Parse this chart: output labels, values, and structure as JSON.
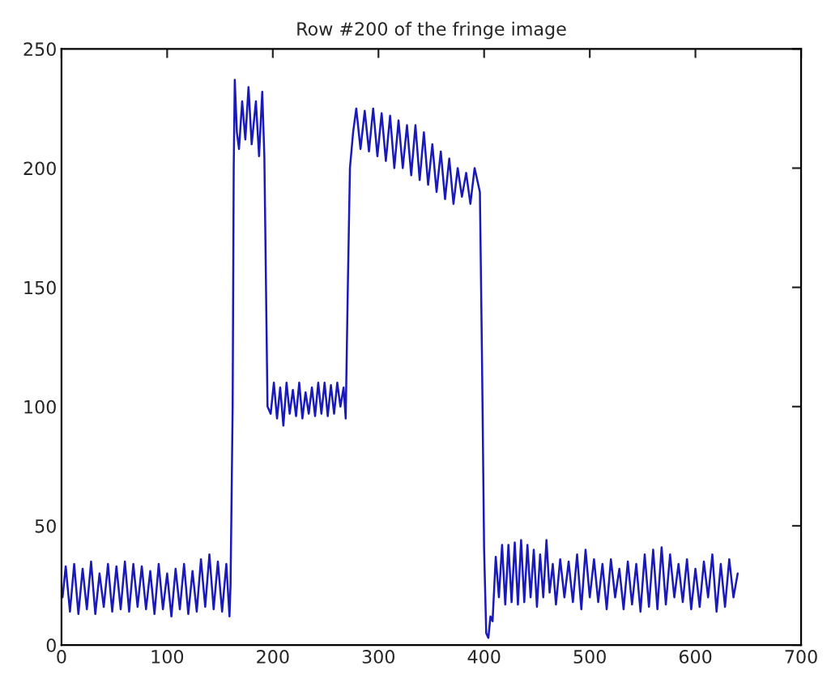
{
  "chart_data": {
    "type": "line",
    "title": "Row #200 of the fringe image",
    "x": [
      1,
      4,
      8,
      12,
      16,
      20,
      24,
      28,
      32,
      36,
      40,
      44,
      48,
      52,
      56,
      60,
      64,
      68,
      72,
      76,
      80,
      84,
      88,
      92,
      96,
      100,
      104,
      108,
      112,
      116,
      120,
      124,
      128,
      132,
      136,
      140,
      144,
      148,
      152,
      156,
      159,
      160,
      162,
      163,
      164,
      166,
      168,
      171,
      174,
      177,
      180,
      184,
      187,
      190,
      192,
      195,
      198,
      201,
      204,
      207,
      210,
      213,
      216,
      219,
      222,
      225,
      228,
      231,
      234,
      237,
      240,
      243,
      246,
      249,
      252,
      255,
      258,
      261,
      264,
      267,
      269,
      271,
      273,
      276,
      279,
      283,
      287,
      291,
      295,
      299,
      303,
      307,
      311,
      315,
      319,
      323,
      327,
      331,
      335,
      339,
      343,
      347,
      351,
      355,
      359,
      363,
      367,
      371,
      375,
      379,
      383,
      387,
      391,
      393,
      396,
      398,
      400,
      402,
      404,
      406,
      408,
      411,
      414,
      417,
      420,
      423,
      426,
      429,
      432,
      435,
      438,
      441,
      444,
      447,
      450,
      453,
      456,
      459,
      462,
      465,
      468,
      472,
      476,
      480,
      484,
      488,
      492,
      496,
      500,
      504,
      508,
      512,
      516,
      520,
      524,
      528,
      532,
      536,
      540,
      544,
      548,
      552,
      556,
      560,
      564,
      568,
      572,
      576,
      580,
      584,
      588,
      592,
      596,
      600,
      604,
      608,
      612,
      616,
      620,
      624,
      628,
      632,
      636,
      640
    ],
    "series": [
      {
        "color": "#1a1aba",
        "values": [
          20,
          33,
          14,
          34,
          13,
          32,
          15,
          35,
          13,
          30,
          16,
          34,
          14,
          33,
          15,
          35,
          14,
          34,
          16,
          33,
          15,
          31,
          13,
          34,
          15,
          30,
          12,
          32,
          15,
          34,
          13,
          31,
          14,
          36,
          16,
          38,
          15,
          35,
          14,
          34,
          12,
          25,
          100,
          200,
          237,
          215,
          208,
          228,
          212,
          234,
          210,
          228,
          205,
          232,
          205,
          100,
          97,
          110,
          95,
          108,
          92,
          110,
          97,
          107,
          96,
          110,
          95,
          106,
          97,
          108,
          96,
          110,
          97,
          110,
          96,
          109,
          97,
          110,
          100,
          108,
          95,
          150,
          200,
          215,
          225,
          208,
          224,
          207,
          225,
          205,
          223,
          203,
          222,
          200,
          220,
          200,
          218,
          197,
          218,
          195,
          215,
          193,
          210,
          190,
          207,
          187,
          204,
          185,
          200,
          188,
          198,
          185,
          200,
          196,
          190,
          120,
          40,
          5,
          3,
          12,
          10,
          37,
          20,
          42,
          17,
          42,
          18,
          43,
          17,
          44,
          18,
          42,
          20,
          40,
          16,
          38,
          20,
          44,
          22,
          34,
          17,
          36,
          20,
          35,
          18,
          38,
          15,
          40,
          20,
          36,
          18,
          34,
          15,
          36,
          20,
          32,
          15,
          35,
          17,
          34,
          14,
          38,
          16,
          40,
          15,
          41,
          17,
          38,
          20,
          34,
          18,
          36,
          15,
          32,
          16,
          35,
          20,
          38,
          14,
          34,
          16,
          36,
          20,
          30
        ]
      }
    ],
    "xlim": [
      0,
      700
    ],
    "ylim": [
      0,
      250
    ],
    "xticks": [
      0,
      100,
      200,
      300,
      400,
      500,
      600,
      700
    ],
    "yticks": [
      0,
      50,
      100,
      150,
      200,
      250
    ],
    "grid": false,
    "legend": false,
    "marker": "none",
    "line_style": "solid"
  }
}
